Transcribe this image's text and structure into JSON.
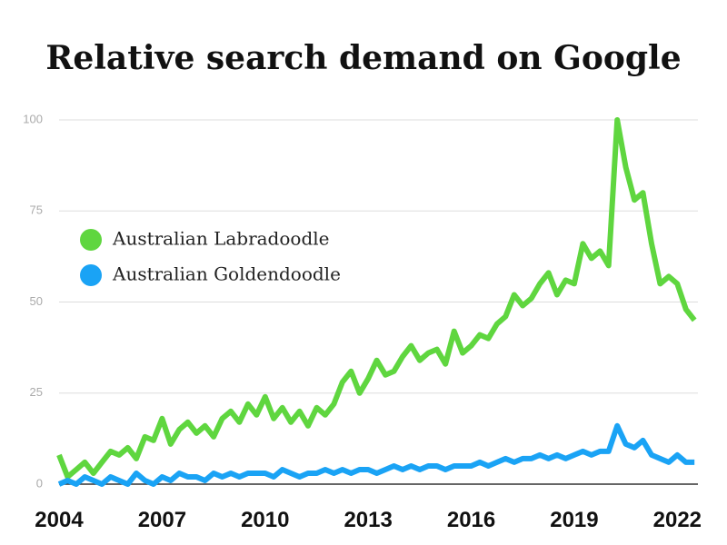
{
  "chart_data": {
    "type": "line",
    "title": "Relative search demand on Google",
    "x": [
      2004,
      2004.25,
      2004.5,
      2004.75,
      2005,
      2005.25,
      2005.5,
      2005.75,
      2006,
      2006.25,
      2006.5,
      2006.75,
      2007,
      2007.25,
      2007.5,
      2007.75,
      2008,
      2008.25,
      2008.5,
      2008.75,
      2009,
      2009.25,
      2009.5,
      2009.75,
      2010,
      2010.25,
      2010.5,
      2010.75,
      2011,
      2011.25,
      2011.5,
      2011.75,
      2012,
      2012.25,
      2012.5,
      2012.75,
      2013,
      2013.25,
      2013.5,
      2013.75,
      2014,
      2014.25,
      2014.5,
      2014.75,
      2015,
      2015.25,
      2015.5,
      2015.75,
      2016,
      2016.25,
      2016.5,
      2016.75,
      2017,
      2017.25,
      2017.5,
      2017.75,
      2018,
      2018.25,
      2018.5,
      2018.75,
      2019,
      2019.25,
      2019.5,
      2019.75,
      2020,
      2020.25,
      2020.5,
      2020.75,
      2021,
      2021.25,
      2021.5,
      2021.75,
      2022,
      2022.25,
      2022.5
    ],
    "series": [
      {
        "name": "Australian Labradoodle",
        "color": "#5fd63f",
        "values": [
          8,
          2,
          4,
          6,
          3,
          6,
          9,
          8,
          10,
          7,
          13,
          12,
          18,
          11,
          15,
          17,
          14,
          16,
          13,
          18,
          20,
          17,
          22,
          19,
          24,
          18,
          21,
          17,
          20,
          16,
          21,
          19,
          22,
          28,
          31,
          25,
          29,
          34,
          30,
          31,
          35,
          38,
          34,
          36,
          37,
          33,
          42,
          36,
          38,
          41,
          40,
          44,
          46,
          52,
          49,
          51,
          55,
          58,
          52,
          56,
          55,
          66,
          62,
          64,
          60,
          100,
          87,
          78,
          80,
          66,
          55,
          57,
          55,
          48,
          45
        ]
      },
      {
        "name": "Australian Goldendoodle",
        "color": "#1aa3f5",
        "values": [
          0,
          1,
          0,
          2,
          1,
          0,
          2,
          1,
          0,
          3,
          1,
          0,
          2,
          1,
          3,
          2,
          2,
          1,
          3,
          2,
          3,
          2,
          3,
          3,
          3,
          2,
          4,
          3,
          2,
          3,
          3,
          4,
          3,
          4,
          3,
          4,
          4,
          3,
          4,
          5,
          4,
          5,
          4,
          5,
          5,
          4,
          5,
          5,
          5,
          6,
          5,
          6,
          7,
          6,
          7,
          7,
          8,
          7,
          8,
          7,
          8,
          9,
          8,
          9,
          9,
          16,
          11,
          10,
          12,
          8,
          7,
          6,
          8,
          6,
          6
        ]
      }
    ],
    "xlim": [
      2004,
      2022.6
    ],
    "xticks": [
      2004,
      2007,
      2010,
      2013,
      2016,
      2019,
      2022
    ],
    "ylim": [
      0,
      100
    ],
    "yticks": [
      0,
      25,
      50,
      75,
      100
    ],
    "grid": true,
    "legend": "left"
  }
}
